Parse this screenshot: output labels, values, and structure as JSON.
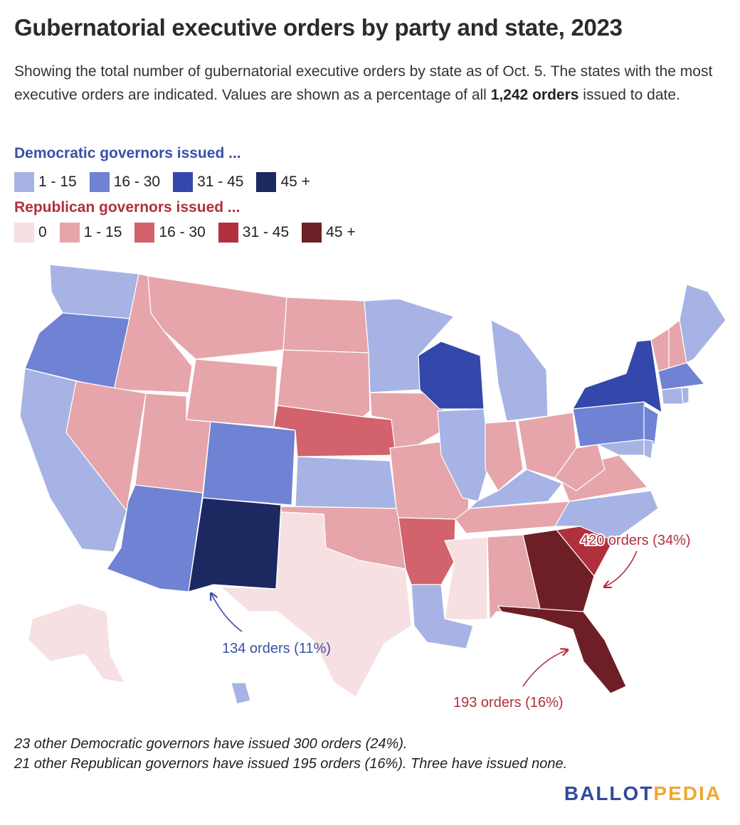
{
  "title": "Gubernatorial executive orders by party and state, 2023",
  "subtitle": {
    "part1": "Showing the total number of gubernatorial executive orders by state as of Oct. 5. The states with the most executive orders are indicated. Values are shown as a percentage of all ",
    "bold": "1,242 orders",
    "part2": " issued to date."
  },
  "legend": {
    "democratic": {
      "title": "Democratic governors issued ...",
      "color": "#3a4fa8",
      "items": [
        {
          "label": "1 - 15",
          "color": "#a7b3e4"
        },
        {
          "label": "16 - 30",
          "color": "#6f82d3"
        },
        {
          "label": "31 - 45",
          "color": "#3348aa"
        },
        {
          "label": "45 +",
          "color": "#1c2860"
        }
      ]
    },
    "republican": {
      "title": "Republican governors issued ...",
      "color": "#b0303d",
      "items": [
        {
          "label": "0",
          "color": "#f6e0e2"
        },
        {
          "label": "1 - 15",
          "color": "#e6a5aa"
        },
        {
          "label": "16 - 30",
          "color": "#d2626b"
        },
        {
          "label": "31 - 45",
          "color": "#b0303d"
        },
        {
          "label": "45 +",
          "color": "#6e1f26"
        }
      ]
    }
  },
  "annotations": {
    "south_carolina": "420 orders (34%)",
    "new_mexico": "134 orders (11%)",
    "florida": "193 orders (16%)"
  },
  "footnotes": {
    "democratic": "23 other Democratic governors have issued 300 orders (24%).",
    "republican": "21 other Republican governors have issued 195 orders (16%). Three have issued none."
  },
  "logo": {
    "part1": "BALLOT",
    "part2": "PEDIA",
    "color1": "#2f4a9e",
    "color2": "#f0a830"
  }
}
